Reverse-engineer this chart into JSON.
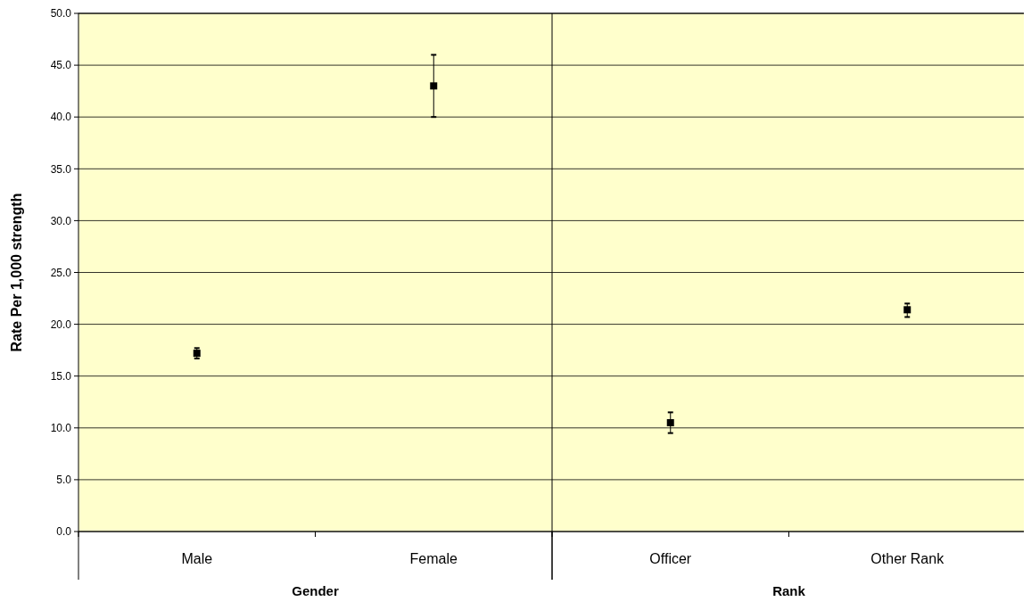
{
  "chart_data": {
    "type": "scatter",
    "ylabel": "Rate Per 1,000 strength",
    "categories": [
      "Male",
      "Female",
      "Officer",
      "Other Rank"
    ],
    "series": [
      {
        "color": "#000000",
        "values": [
          17.2,
          43.0,
          10.5,
          21.4
        ],
        "errors": [
          [
            16.7,
            17.7
          ],
          3.0,
          1.0,
          [
            20.7,
            22.0
          ]
        ]
      }
    ],
    "ylim": [
      0,
      50
    ],
    "yticks": [
      {
        "value": 0,
        "label": "0.0"
      },
      {
        "value": 5,
        "label": "5.0"
      },
      {
        "value": 10,
        "label": "10.0"
      },
      {
        "value": 15,
        "label": "15.0"
      },
      {
        "value": 20,
        "label": "20.0"
      },
      {
        "value": 25,
        "label": "25.0"
      },
      {
        "value": 30,
        "label": "30.0"
      },
      {
        "value": 35,
        "label": "35.0"
      },
      {
        "value": 40,
        "label": "40.0"
      },
      {
        "value": 45,
        "label": "45.0"
      },
      {
        "value": 50,
        "label": "50.0"
      }
    ],
    "grid": "y",
    "marker": "square",
    "annotations": [
      "Gender",
      "Rank"
    ]
  }
}
